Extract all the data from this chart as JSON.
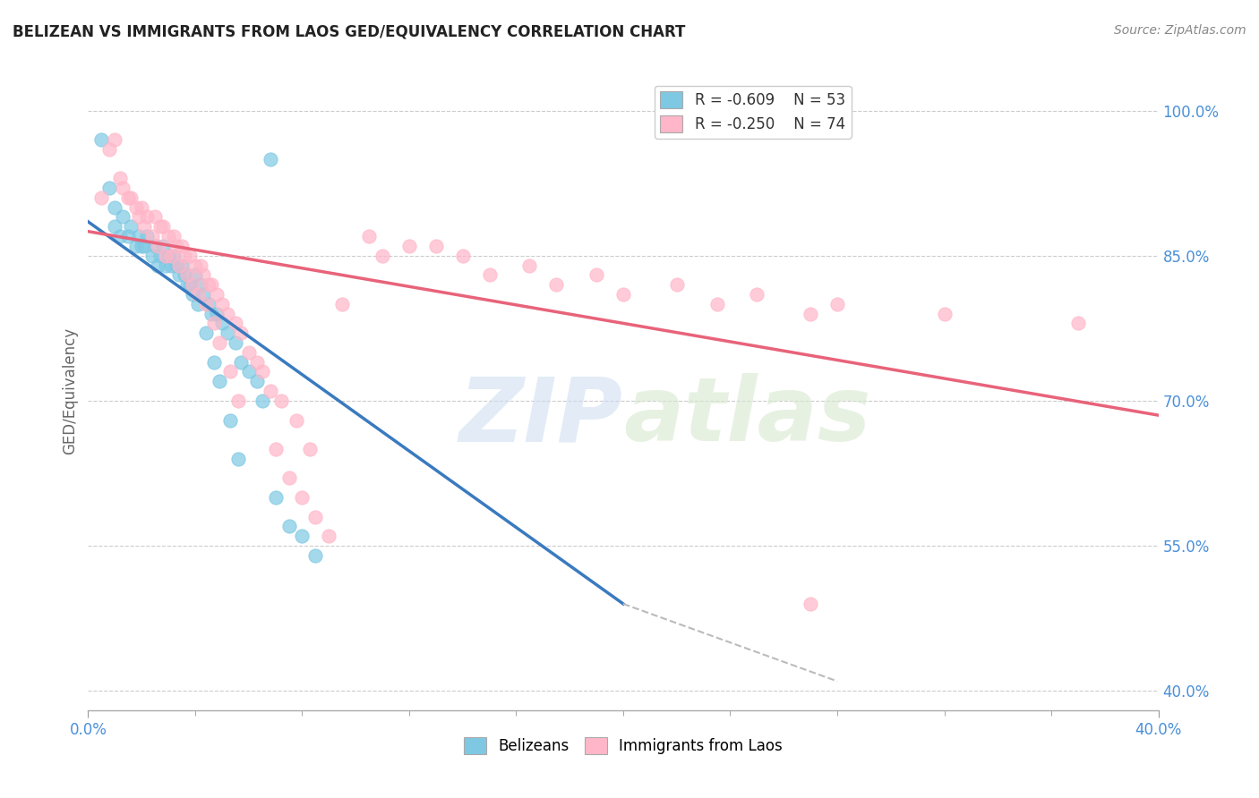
{
  "title": "BELIZEAN VS IMMIGRANTS FROM LAOS GED/EQUIVALENCY CORRELATION CHART",
  "source": "Source: ZipAtlas.com",
  "ylabel": "GED/Equivalency",
  "y_ticks": [
    "40.0%",
    "55.0%",
    "70.0%",
    "85.0%",
    "100.0%"
  ],
  "y_tick_vals": [
    40.0,
    55.0,
    70.0,
    85.0,
    100.0
  ],
  "x_range": [
    0.0,
    40.0
  ],
  "y_range": [
    38.0,
    104.0
  ],
  "legend_r1": "R = -0.609",
  "legend_n1": "N = 53",
  "legend_r2": "R = -0.250",
  "legend_n2": "N = 74",
  "color_blue": "#7ec8e3",
  "color_pink": "#ffb6c8",
  "color_blue_line": "#3a7abf",
  "color_pink_line": "#e8637a",
  "color_dashed_line": "#bbbbbb",
  "watermark_zip": "ZIP",
  "watermark_atlas": "atlas",
  "blue_points_x": [
    0.5,
    0.8,
    1.0,
    1.2,
    1.5,
    1.8,
    2.0,
    2.2,
    2.5,
    2.7,
    2.8,
    3.0,
    3.2,
    3.3,
    3.5,
    3.6,
    3.8,
    4.0,
    4.2,
    4.3,
    4.5,
    4.6,
    4.8,
    5.0,
    5.2,
    5.5,
    5.7,
    6.0,
    6.3,
    6.5,
    6.8,
    1.0,
    1.3,
    1.6,
    1.9,
    2.1,
    2.4,
    2.6,
    2.9,
    3.1,
    3.4,
    3.7,
    3.9,
    4.1,
    4.4,
    4.7,
    4.9,
    5.3,
    5.6,
    7.0,
    7.5,
    8.0,
    8.5
  ],
  "blue_points_y": [
    97,
    92,
    88,
    87,
    87,
    86,
    86,
    87,
    86,
    85,
    86,
    85,
    85,
    84,
    84,
    83,
    82,
    83,
    82,
    81,
    80,
    79,
    79,
    78,
    77,
    76,
    74,
    73,
    72,
    70,
    95,
    90,
    89,
    88,
    87,
    86,
    85,
    84,
    84,
    84,
    83,
    82,
    81,
    80,
    77,
    74,
    72,
    68,
    64,
    60,
    57,
    56,
    54
  ],
  "pink_points_x": [
    0.5,
    0.8,
    1.0,
    1.2,
    1.5,
    1.8,
    2.0,
    2.2,
    2.5,
    2.7,
    2.8,
    3.0,
    3.2,
    3.3,
    3.5,
    3.6,
    3.8,
    4.0,
    4.2,
    4.3,
    4.5,
    4.6,
    4.8,
    5.0,
    5.2,
    5.5,
    5.7,
    6.0,
    6.3,
    6.5,
    6.8,
    7.2,
    7.8,
    8.3,
    1.3,
    1.6,
    1.9,
    2.1,
    2.4,
    2.6,
    2.9,
    3.1,
    3.4,
    3.7,
    3.9,
    4.1,
    4.4,
    4.7,
    4.9,
    5.3,
    5.6,
    7.0,
    7.5,
    8.0,
    8.5,
    9.0,
    10.5,
    12.0,
    14.0,
    16.5,
    19.0,
    22.0,
    25.0,
    28.0,
    32.0,
    37.0,
    9.5,
    11.0,
    13.0,
    15.0,
    17.5,
    20.0,
    23.5,
    27.0
  ],
  "pink_points_y": [
    91,
    96,
    97,
    93,
    91,
    90,
    90,
    89,
    89,
    88,
    88,
    87,
    87,
    86,
    86,
    85,
    85,
    84,
    84,
    83,
    82,
    82,
    81,
    80,
    79,
    78,
    77,
    75,
    74,
    73,
    71,
    70,
    68,
    65,
    92,
    91,
    89,
    88,
    87,
    86,
    85,
    85,
    84,
    83,
    82,
    81,
    80,
    78,
    76,
    73,
    70,
    65,
    62,
    60,
    58,
    56,
    87,
    86,
    85,
    84,
    83,
    82,
    81,
    80,
    79,
    78,
    80,
    85,
    86,
    83,
    82,
    81,
    80,
    79
  ],
  "blue_line_x": [
    0.0,
    20.0
  ],
  "blue_line_y": [
    88.5,
    49.0
  ],
  "pink_line_x": [
    0.0,
    40.0
  ],
  "pink_line_y": [
    87.5,
    68.5
  ],
  "dashed_line_x": [
    20.0,
    28.0
  ],
  "dashed_line_y": [
    49.0,
    41.0
  ],
  "single_pink_point_x": 27.0,
  "single_pink_point_y": 49.0
}
